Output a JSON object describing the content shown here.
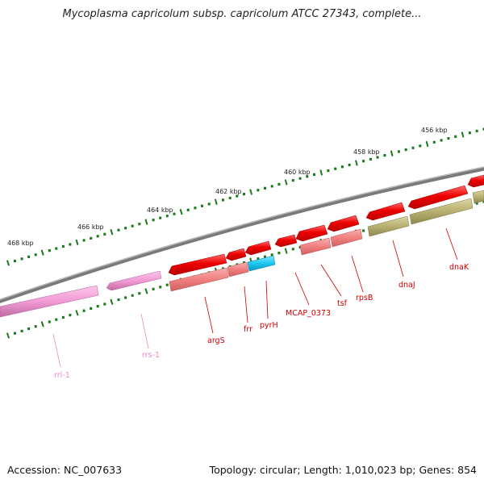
{
  "title": "Mycoplasma capricolum subsp. capricolum ATCC 27343, complete...",
  "footer": {
    "accession": "Accession: NC_007633",
    "summary": "Topology: circular; Length: 1,010,023 bp; Genes: 854"
  },
  "ruler": {
    "labels": [
      "456 kbp",
      "458 kbp",
      "460 kbp",
      "462 kbp",
      "464 kbp",
      "466 kbp",
      "468 kbp"
    ]
  },
  "genes": [
    {
      "name": "dnaK",
      "color": "#cc0000"
    },
    {
      "name": "dnaJ",
      "color": "#cc0000"
    },
    {
      "name": "rpsB",
      "color": "#cc0000"
    },
    {
      "name": "tsf",
      "color": "#cc0000"
    },
    {
      "name": "MCAP_0373",
      "color": "#cc0000"
    },
    {
      "name": "pyrH",
      "color": "#cc0000"
    },
    {
      "name": "frr",
      "color": "#cc0000"
    },
    {
      "name": "argS",
      "color": "#cc0000"
    },
    {
      "name": "rrs-1",
      "color": "#e88cc8"
    },
    {
      "name": "rrl-1",
      "color": "#e88cc8"
    }
  ],
  "colors": {
    "backbone": "#808080",
    "cds_forward": "#ee0000",
    "cds_light": "#f08080",
    "trna_cyan": "#1ec8f0",
    "rrna_pink": "#f29bd4",
    "olive": "#b8b070",
    "tick_green": "#1a7a1a"
  }
}
